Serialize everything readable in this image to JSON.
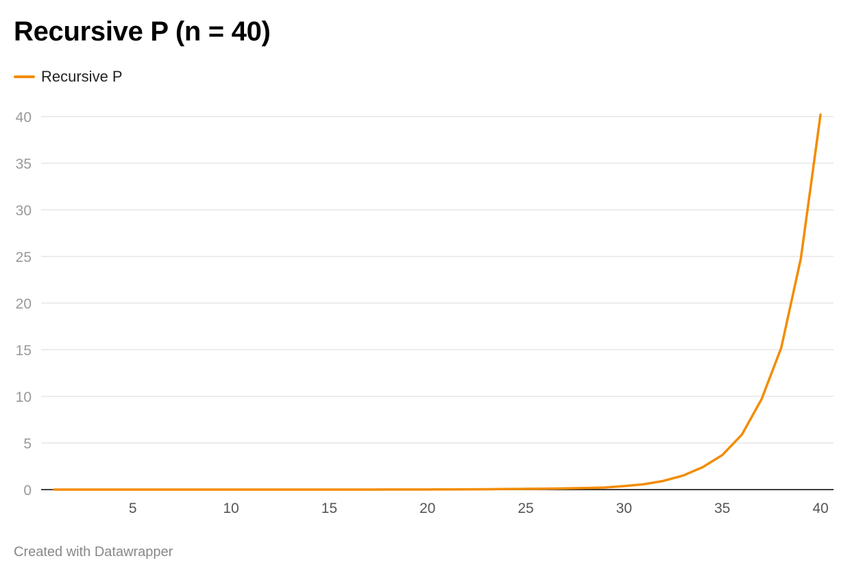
{
  "title": "Recursive P (n = 40)",
  "footer": "Created with Datawrapper",
  "colors": {
    "series": "#f28c00",
    "grid": "#e6e6e6",
    "axis": "#000000",
    "tick_text": "#999999"
  },
  "chart_data": {
    "type": "line",
    "title": "Recursive P (n = 40)",
    "xlabel": "",
    "ylabel": "",
    "xlim": [
      1,
      40
    ],
    "ylim": [
      0,
      40
    ],
    "x_ticks": [
      5,
      10,
      15,
      20,
      25,
      30,
      35,
      40
    ],
    "y_ticks": [
      0,
      5,
      10,
      15,
      20,
      25,
      30,
      35,
      40
    ],
    "grid": true,
    "legend": "top-left",
    "x": [
      1,
      2,
      3,
      4,
      5,
      6,
      7,
      8,
      9,
      10,
      11,
      12,
      13,
      14,
      15,
      16,
      17,
      18,
      19,
      20,
      21,
      22,
      23,
      24,
      25,
      26,
      27,
      28,
      29,
      30,
      31,
      32,
      33,
      34,
      35,
      36,
      37,
      38,
      39,
      40
    ],
    "series": [
      {
        "name": "Recursive P",
        "values": [
          0,
          0,
          0,
          0,
          0,
          0,
          0,
          0,
          0,
          0,
          0,
          0,
          0,
          0,
          0,
          0,
          0,
          0.01,
          0.01,
          0.01,
          0.02,
          0.03,
          0.04,
          0.06,
          0.08,
          0.1,
          0.13,
          0.17,
          0.22,
          0.38,
          0.57,
          0.93,
          1.5,
          2.4,
          3.7,
          5.9,
          9.7,
          15.2,
          24.8,
          40.2
        ]
      }
    ]
  }
}
